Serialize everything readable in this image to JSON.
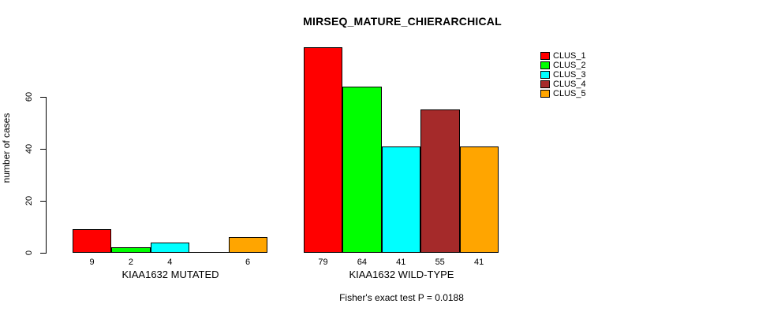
{
  "chart_data": {
    "type": "bar",
    "title": "MIRSEQ_MATURE_CHIERARCHICAL",
    "ylabel": "number of cases",
    "xlabel": "",
    "yticks": [
      0,
      20,
      40,
      60
    ],
    "ylim": [
      0,
      79
    ],
    "grid": false,
    "legend_position": "top-right",
    "categories": [
      "KIAA1632 MUTATED",
      "KIAA1632 WILD-TYPE"
    ],
    "series": [
      {
        "name": "CLUS_1",
        "color": "#FF0000",
        "values": [
          9,
          79
        ]
      },
      {
        "name": "CLUS_2",
        "color": "#00FF00",
        "values": [
          2,
          64
        ]
      },
      {
        "name": "CLUS_3",
        "color": "#00FFFF",
        "values": [
          4,
          41
        ]
      },
      {
        "name": "CLUS_4",
        "color": "#A52A2A",
        "values": [
          0,
          55
        ]
      },
      {
        "name": "CLUS_5",
        "color": "#FFA500",
        "values": [
          6,
          41
        ]
      }
    ],
    "bar_value_labels_shown": true,
    "zero_value_labels_hidden": true,
    "annotation": "Fisher's exact test P = 0.0188",
    "colors": {
      "background": "#FFFFFF",
      "axis": "#000000",
      "text": "#000000"
    }
  }
}
